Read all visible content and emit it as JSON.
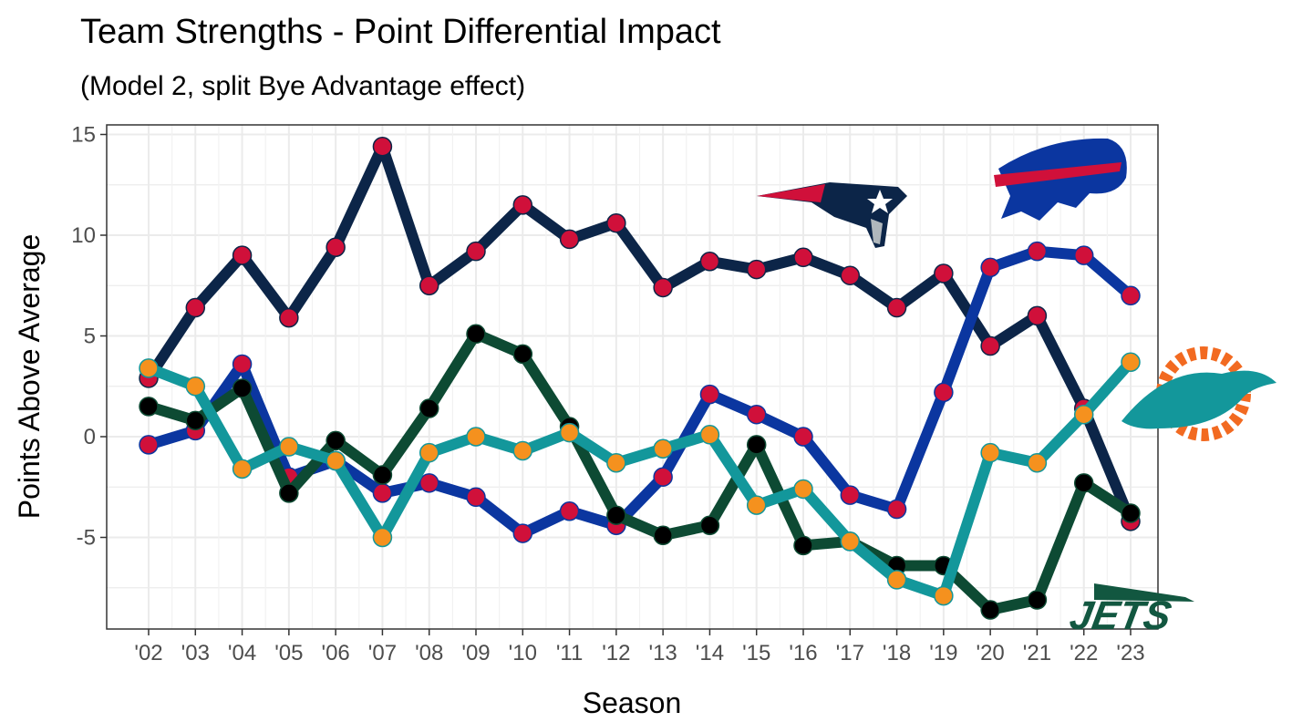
{
  "chart_data": {
    "type": "line",
    "title": "Team Strengths - Point Differential Impact",
    "subtitle": "(Model 2, split Bye Advantage effect)",
    "xlabel": "Season",
    "ylabel": "Points Above Average",
    "ylim": [
      -10,
      16
    ],
    "yticks": [
      15,
      10,
      5,
      0,
      -5
    ],
    "ytick_labels": [
      "15",
      "10",
      "5",
      "0",
      "-5"
    ],
    "grid": true,
    "legend": "none (team logos at right)",
    "categories": [
      "'02",
      "'03",
      "'04",
      "'05",
      "'06",
      "'07",
      "'08",
      "'09",
      "'10",
      "'11",
      "'12",
      "'13",
      "'14",
      "'15",
      "'16",
      "'17",
      "'18",
      "'19",
      "'20",
      "'21",
      "'22",
      "'23"
    ],
    "series": [
      {
        "name": "Patriots",
        "line_color": "#0c2548",
        "dot_color": "#d0103a",
        "values": [
          2.9,
          6.4,
          9.0,
          5.9,
          9.4,
          14.4,
          7.5,
          9.2,
          11.5,
          9.8,
          10.6,
          7.4,
          8.7,
          8.3,
          8.9,
          8.0,
          6.4,
          8.1,
          4.5,
          6.0,
          1.4,
          -4.2
        ]
      },
      {
        "name": "Bills",
        "line_color": "#0b36a0",
        "dot_color": "#d0103a",
        "values": [
          -0.4,
          0.3,
          3.6,
          -2.0,
          -1.2,
          -2.8,
          -2.3,
          -3.0,
          -4.8,
          -3.7,
          -4.4,
          -2.0,
          2.1,
          1.1,
          0.0,
          -2.9,
          -3.6,
          2.2,
          8.4,
          9.2,
          9.0,
          7.0
        ]
      },
      {
        "name": "Jets",
        "line_color": "#0d4a33",
        "dot_color": "#000000",
        "values": [
          1.5,
          0.8,
          2.4,
          -2.8,
          -0.2,
          -1.9,
          1.4,
          5.1,
          4.1,
          0.5,
          -3.9,
          -4.9,
          -4.4,
          -0.4,
          -5.4,
          -5.2,
          -6.4,
          -6.4,
          -8.6,
          -8.1,
          -2.3,
          -3.8
        ]
      },
      {
        "name": "Dolphins",
        "line_color": "#13979b",
        "dot_color": "#f5911e",
        "values": [
          3.4,
          2.5,
          -1.6,
          -0.5,
          -1.2,
          -5.0,
          -0.8,
          0.0,
          -0.7,
          0.2,
          -1.3,
          -0.6,
          0.1,
          -3.4,
          -2.6,
          -5.2,
          -7.1,
          -7.9,
          -0.8,
          -1.3,
          1.1,
          3.7
        ]
      }
    ],
    "logo_text": {
      "jets": "JETS"
    }
  }
}
